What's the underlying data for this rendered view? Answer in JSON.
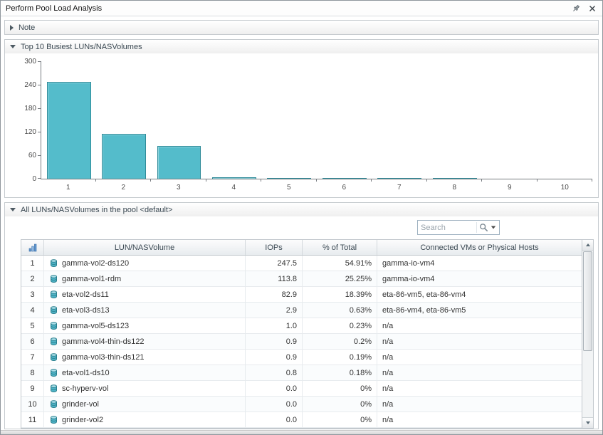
{
  "window": {
    "title": "Perform Pool Load Analysis"
  },
  "icons": {
    "pin": "pushpin",
    "close": "✕",
    "collapsed_arrow": "▶",
    "expanded_arrow": "▼",
    "search": "magnifier",
    "search_dropdown": "▾",
    "volume": "disk-cylinder",
    "rank_column": "blue-rank-bars",
    "scroll_up": "▲",
    "scroll_down": "▼"
  },
  "sections": {
    "note": {
      "label": "Note",
      "collapsed": true
    },
    "top10": {
      "label": "Top 10 Busiest LUNs/NASVolumes",
      "collapsed": false
    },
    "all_luns": {
      "label": "All LUNs/NASVolumes in the pool <default>",
      "collapsed": false
    }
  },
  "search": {
    "placeholder": "Search"
  },
  "chart_data": {
    "type": "bar",
    "title": "Top 10 Busiest LUNs/NASVolumes",
    "categories": [
      "1",
      "2",
      "3",
      "4",
      "5",
      "6",
      "7",
      "8",
      "9",
      "10"
    ],
    "values": [
      247.5,
      113.8,
      82.9,
      2.9,
      1.0,
      0.9,
      0.9,
      0.8,
      0.0,
      0.0
    ],
    "xlabel": "",
    "ylabel": "",
    "ylim": [
      0,
      300
    ],
    "yticks": [
      0,
      60,
      120,
      180,
      240,
      300
    ],
    "grid": false,
    "legend": false,
    "bar_color": "#54bccb",
    "bar_border_color": "#2f8b99"
  },
  "table": {
    "columns": [
      "",
      "LUN/NASVolume",
      "IOPs",
      "% of Total",
      "Connected VMs or Physical Hosts"
    ],
    "rows": [
      {
        "num": "1",
        "lun": "gamma-vol2-ds120",
        "iops": "247.5",
        "pct": "54.91%",
        "vms": "gamma-io-vm4"
      },
      {
        "num": "2",
        "lun": "gamma-vol1-rdm",
        "iops": "113.8",
        "pct": "25.25%",
        "vms": "gamma-io-vm4"
      },
      {
        "num": "3",
        "lun": "eta-vol2-ds11",
        "iops": "82.9",
        "pct": "18.39%",
        "vms": "eta-86-vm5, eta-86-vm4"
      },
      {
        "num": "4",
        "lun": "eta-vol3-ds13",
        "iops": "2.9",
        "pct": "0.63%",
        "vms": "eta-86-vm4, eta-86-vm5"
      },
      {
        "num": "5",
        "lun": "gamma-vol5-ds123",
        "iops": "1.0",
        "pct": "0.23%",
        "vms": "n/a"
      },
      {
        "num": "6",
        "lun": "gamma-vol4-thin-ds122",
        "iops": "0.9",
        "pct": "0.2%",
        "vms": "n/a"
      },
      {
        "num": "7",
        "lun": "gamma-vol3-thin-ds121",
        "iops": "0.9",
        "pct": "0.19%",
        "vms": "n/a"
      },
      {
        "num": "8",
        "lun": "eta-vol1-ds10",
        "iops": "0.8",
        "pct": "0.18%",
        "vms": "n/a"
      },
      {
        "num": "9",
        "lun": "sc-hyperv-vol",
        "iops": "0.0",
        "pct": "0%",
        "vms": "n/a"
      },
      {
        "num": "10",
        "lun": "grinder-vol",
        "iops": "0.0",
        "pct": "0%",
        "vms": "n/a"
      },
      {
        "num": "11",
        "lun": "grinder-vol2",
        "iops": "0.0",
        "pct": "0%",
        "vms": "n/a"
      }
    ]
  }
}
